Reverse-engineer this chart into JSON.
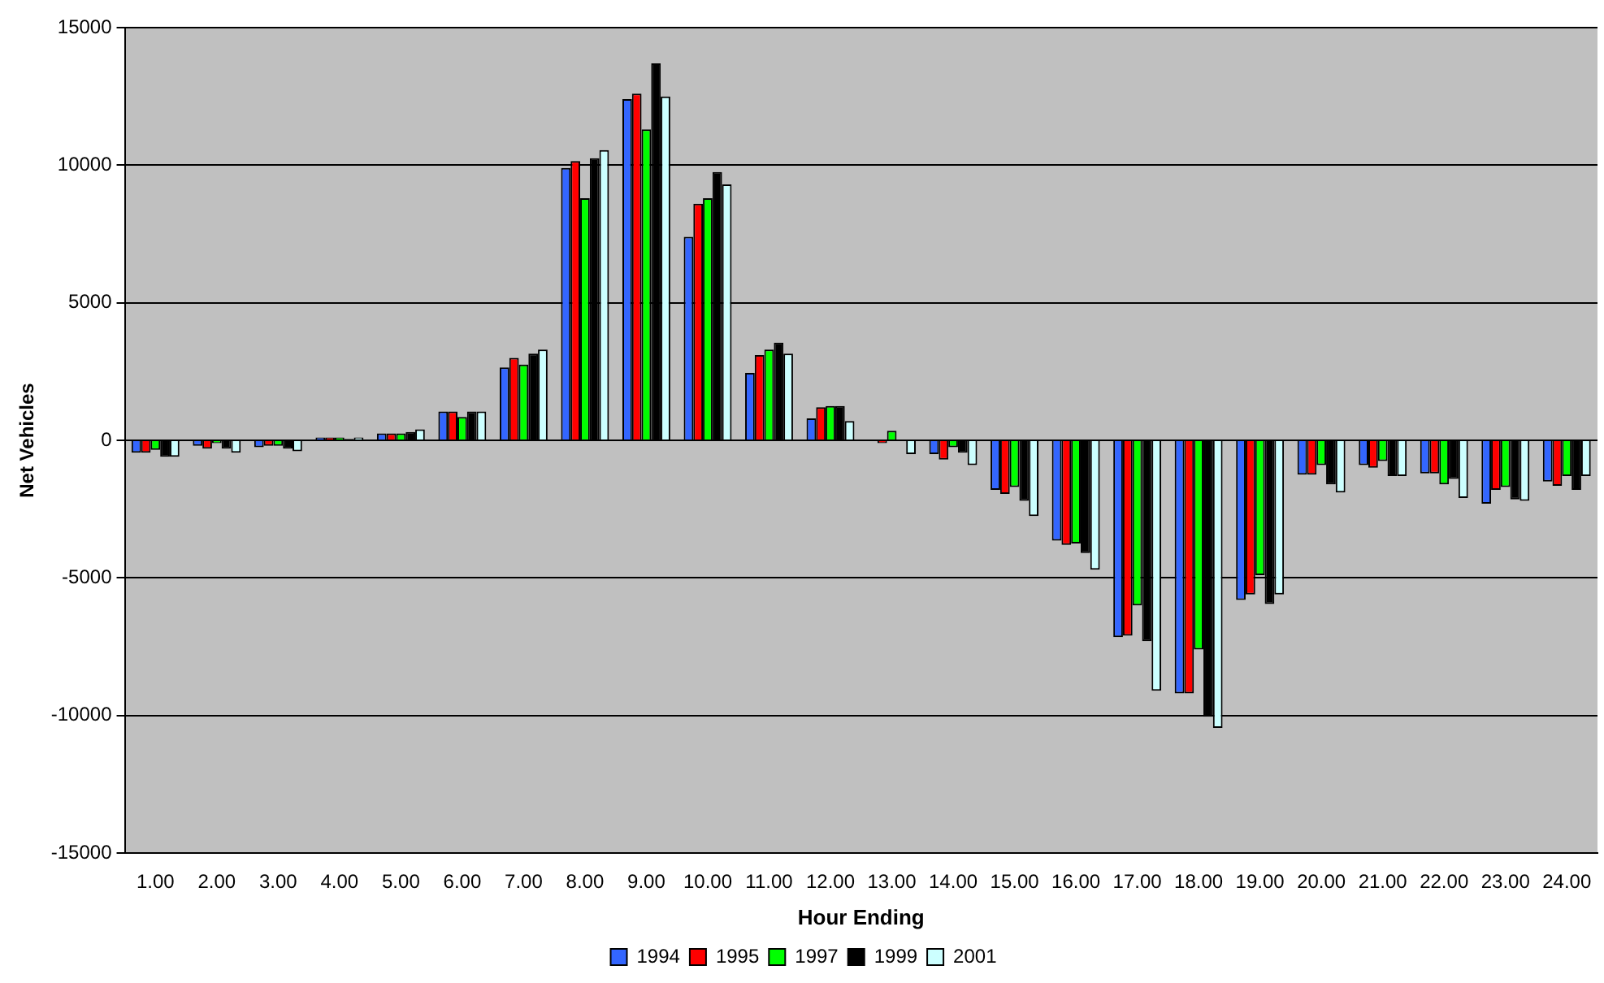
{
  "chart_data": {
    "type": "bar",
    "xlabel": "Hour Ending",
    "ylabel": "Net Vehicles",
    "categories": [
      "1.00",
      "2.00",
      "3.00",
      "4.00",
      "5.00",
      "6.00",
      "7.00",
      "8.00",
      "9.00",
      "10.00",
      "11.00",
      "12.00",
      "13.00",
      "14.00",
      "15.00",
      "16.00",
      "17.00",
      "18.00",
      "19.00",
      "20.00",
      "21.00",
      "22.00",
      "23.00",
      "24.00"
    ],
    "series": [
      {
        "name": "1994",
        "color": "#3366ff",
        "values": [
          -450,
          -200,
          -250,
          100,
          250,
          1050,
          2650,
          9900,
          12400,
          7400,
          2450,
          800,
          0,
          -500,
          -1800,
          -3650,
          -7150,
          -9200,
          -5800,
          -1250,
          -900,
          -1200,
          -2300,
          -1500
        ]
      },
      {
        "name": "1995",
        "color": "#ff0000",
        "values": [
          -450,
          -300,
          -200,
          100,
          250,
          1050,
          3000,
          10150,
          12600,
          8600,
          3100,
          1200,
          -100,
          -700,
          -1950,
          -3800,
          -7100,
          -9200,
          -5600,
          -1250,
          -1000,
          -1200,
          -1800,
          -1650
        ]
      },
      {
        "name": "1997",
        "color": "#00ff00",
        "values": [
          -350,
          -100,
          -200,
          100,
          250,
          850,
          2750,
          8800,
          11300,
          8800,
          3300,
          1250,
          350,
          -250,
          -1700,
          -3750,
          -6000,
          -7600,
          -4900,
          -900,
          -750,
          -1600,
          -1700,
          -1300
        ]
      },
      {
        "name": "1999",
        "color": "#000000",
        "values": [
          -600,
          -300,
          -300,
          50,
          300,
          1050,
          3150,
          10250,
          13700,
          9750,
          3550,
          1250,
          0,
          -450,
          -2200,
          -4100,
          -7300,
          -10050,
          -5950,
          -1600,
          -1300,
          -1400,
          -2150,
          -1800
        ]
      },
      {
        "name": "2001",
        "color": "#ccffff",
        "values": [
          -600,
          -450,
          -400,
          100,
          400,
          1050,
          3300,
          10550,
          12500,
          9300,
          3150,
          700,
          -500,
          -900,
          -2750,
          -4700,
          -9100,
          -10450,
          -5600,
          -1900,
          -1300,
          -2100,
          -2200,
          -1300
        ]
      }
    ],
    "ylim": [
      -15000,
      15000
    ],
    "yticks": [
      -15000,
      -10000,
      -5000,
      0,
      5000,
      10000,
      15000
    ],
    "grid": "y",
    "legend": "bottom"
  }
}
